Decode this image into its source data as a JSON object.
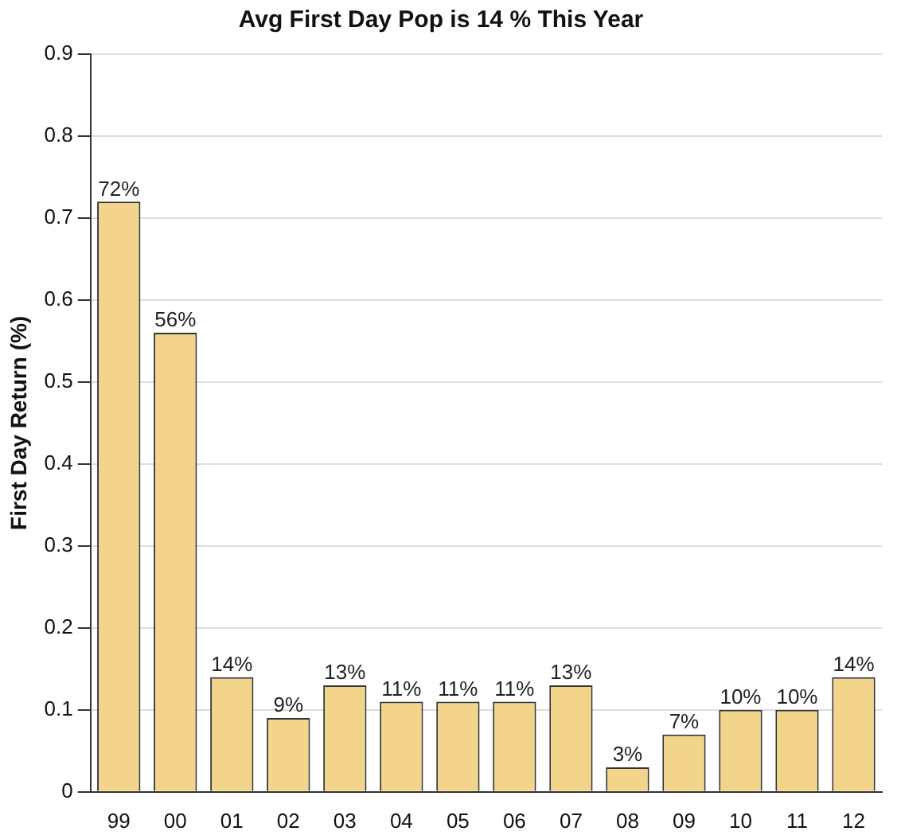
{
  "chart_data": {
    "type": "bar",
    "title": "Avg First Day Pop is 14 % This Year",
    "ylabel": "First Day Return (%)",
    "categories": [
      "99",
      "00",
      "01",
      "02",
      "03",
      "04",
      "05",
      "06",
      "07",
      "08",
      "09",
      "10",
      "11",
      "12"
    ],
    "values": [
      0.72,
      0.56,
      0.14,
      0.09,
      0.13,
      0.11,
      0.11,
      0.11,
      0.13,
      0.03,
      0.07,
      0.1,
      0.1,
      0.14
    ],
    "value_labels": [
      "72%",
      "56%",
      "14%",
      "9%",
      "13%",
      "11%",
      "11%",
      "11%",
      "13%",
      "3%",
      "7%",
      "10%",
      "10%",
      "14%"
    ],
    "color": "#f2d58a",
    "ylim": [
      0,
      0.9
    ],
    "yticks": [
      0,
      0.1,
      0.2,
      0.3,
      0.4,
      0.5,
      0.6,
      0.7,
      0.8,
      0.9
    ],
    "grid": "y"
  }
}
